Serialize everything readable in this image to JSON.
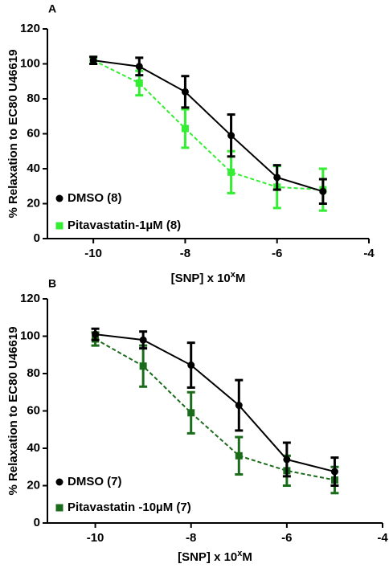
{
  "chart_data": [
    {
      "type": "line",
      "panel_label": "A",
      "xlabel": "[SNP] x 10",
      "xlabel_sup": "x",
      "xlabel_suffix": "M",
      "ylabel": "% Relaxation to EC80 U46619",
      "xlim": [
        -11,
        -4
      ],
      "ylim": [
        0,
        120
      ],
      "x_ticks": [
        -10,
        -8,
        -6,
        -4
      ],
      "x_tick_labels": [
        "-10",
        "-8",
        "-6",
        "-4"
      ],
      "y_ticks": [
        0,
        20,
        40,
        60,
        80,
        100,
        120
      ],
      "y_tick_labels": [
        "0",
        "20",
        "40",
        "60",
        "80",
        "100",
        "120"
      ],
      "legend_position": "bottom-left",
      "series": [
        {
          "name": "DMSO (8)",
          "color": "#000000",
          "marker": "circle",
          "line_style": "solid",
          "x": [
            -10,
            -9,
            -8,
            -7,
            -6,
            -5
          ],
          "y": [
            102,
            98.5,
            84,
            59,
            35,
            27
          ],
          "error": [
            2,
            5,
            9,
            12,
            7,
            7
          ]
        },
        {
          "name": "Pitavastatin-1µM (8)",
          "color": "#33ee33",
          "marker": "square",
          "line_style": "dashed",
          "x": [
            -10,
            -9,
            -8,
            -7,
            -6,
            -5
          ],
          "y": [
            102,
            89,
            63,
            38,
            29.5,
            28
          ],
          "error": [
            2,
            7,
            11,
            12,
            12,
            12
          ]
        }
      ]
    },
    {
      "type": "line",
      "panel_label": "B",
      "xlabel": "[SNP] x 10",
      "xlabel_sup": "x",
      "xlabel_suffix": "M",
      "ylabel": "% Relaxation to EC80 U46619",
      "xlim": [
        -11,
        -4
      ],
      "ylim": [
        0,
        120
      ],
      "x_ticks": [
        -10,
        -8,
        -6,
        -4
      ],
      "x_tick_labels": [
        "-10",
        "-8",
        "-6",
        "-4"
      ],
      "y_ticks": [
        0,
        20,
        40,
        60,
        80,
        100,
        120
      ],
      "y_tick_labels": [
        "0",
        "20",
        "40",
        "60",
        "80",
        "100",
        "120"
      ],
      "legend_position": "bottom-left",
      "series": [
        {
          "name": "DMSO (7)",
          "color": "#000000",
          "marker": "circle",
          "line_style": "solid",
          "x": [
            -10,
            -9,
            -8,
            -7,
            -6,
            -5
          ],
          "y": [
            101,
            98,
            84.5,
            63,
            34,
            27.5
          ],
          "error": [
            3,
            4.5,
            12,
            13.5,
            9,
            7.5
          ]
        },
        {
          "name": "Pitavastatin -10µM (7)",
          "color": "#1a6b1a",
          "marker": "square",
          "line_style": "dashed",
          "x": [
            -10,
            -9,
            -8,
            -7,
            -6,
            -5
          ],
          "y": [
            98.5,
            84,
            59,
            36,
            28,
            23
          ],
          "error": [
            3.5,
            11,
            11,
            10,
            8,
            7
          ]
        }
      ]
    }
  ]
}
